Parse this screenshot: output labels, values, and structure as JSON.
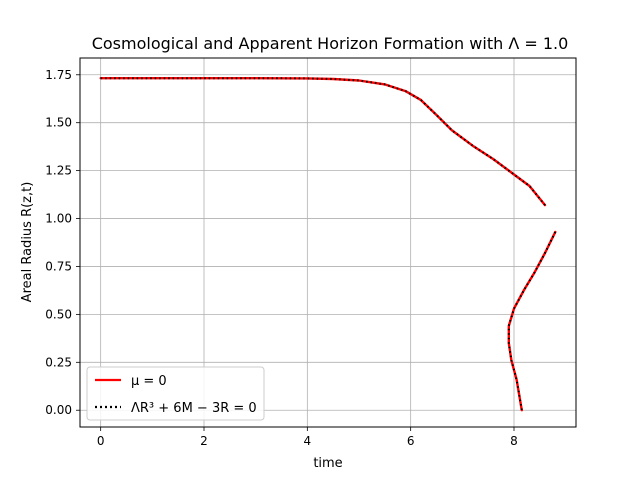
{
  "chart_data": {
    "type": "line",
    "title": "Cosmological and Apparent Horizon Formation with Λ = 1.0",
    "xlabel": "time",
    "ylabel": "Areal Radius R(z,t)",
    "xlim": [
      -0.4,
      9.2
    ],
    "ylim": [
      -0.0875,
      1.8375
    ],
    "xticks": [
      "0",
      "2",
      "4",
      "6",
      "8"
    ],
    "yticks": [
      "0.00",
      "0.25",
      "0.50",
      "0.75",
      "1.00",
      "1.25",
      "1.50",
      "1.75"
    ],
    "grid": true,
    "legend_position": "lower-left",
    "series": [
      {
        "name": "μ = 0",
        "color": "#ff0000",
        "style": "solid",
        "segments": [
          [
            [
              0.0,
              1.732
            ],
            [
              1.0,
              1.732
            ],
            [
              2.0,
              1.732
            ],
            [
              3.0,
              1.732
            ],
            [
              4.0,
              1.731
            ],
            [
              4.5,
              1.728
            ],
            [
              5.0,
              1.72
            ],
            [
              5.5,
              1.7
            ],
            [
              5.9,
              1.665
            ],
            [
              6.2,
              1.618
            ],
            [
              6.5,
              1.54
            ],
            [
              6.8,
              1.46
            ],
            [
              7.2,
              1.38
            ],
            [
              7.6,
              1.31
            ],
            [
              8.0,
              1.23
            ],
            [
              8.3,
              1.17
            ],
            [
              8.6,
              1.07
            ]
          ],
          [
            [
              8.8,
              0.93
            ],
            [
              8.6,
              0.82
            ],
            [
              8.4,
              0.72
            ],
            [
              8.2,
              0.63
            ],
            [
              8.0,
              0.53
            ],
            [
              7.9,
              0.44
            ],
            [
              7.9,
              0.35
            ],
            [
              7.95,
              0.26
            ],
            [
              8.05,
              0.16
            ],
            [
              8.1,
              0.08
            ],
            [
              8.15,
              0.0
            ]
          ]
        ]
      },
      {
        "name": "ΛR³ + 6M − 3R = 0",
        "color": "#000000",
        "style": "dotted",
        "segments": [
          [
            [
              0.0,
              1.732
            ],
            [
              1.0,
              1.732
            ],
            [
              2.0,
              1.732
            ],
            [
              3.0,
              1.732
            ],
            [
              4.0,
              1.731
            ],
            [
              4.5,
              1.728
            ],
            [
              5.0,
              1.72
            ],
            [
              5.5,
              1.7
            ],
            [
              5.9,
              1.665
            ],
            [
              6.2,
              1.618
            ],
            [
              6.5,
              1.54
            ],
            [
              6.8,
              1.46
            ],
            [
              7.2,
              1.38
            ],
            [
              7.6,
              1.31
            ],
            [
              8.0,
              1.23
            ],
            [
              8.3,
              1.17
            ],
            [
              8.6,
              1.07
            ]
          ],
          [
            [
              8.8,
              0.93
            ],
            [
              8.6,
              0.82
            ],
            [
              8.4,
              0.72
            ],
            [
              8.2,
              0.63
            ],
            [
              8.0,
              0.53
            ],
            [
              7.9,
              0.44
            ],
            [
              7.9,
              0.35
            ],
            [
              7.95,
              0.26
            ],
            [
              8.05,
              0.16
            ],
            [
              8.1,
              0.08
            ],
            [
              8.15,
              0.0
            ]
          ]
        ]
      }
    ],
    "legend": {
      "entries": [
        "μ = 0",
        "ΛR³ + 6M − 3R = 0"
      ]
    }
  }
}
